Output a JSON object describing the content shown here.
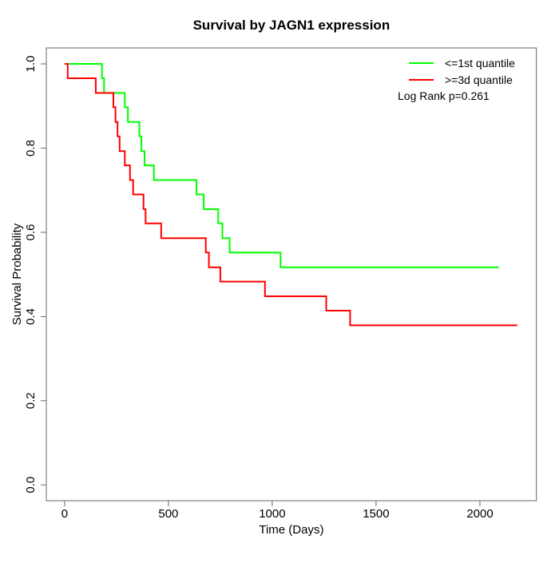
{
  "chart_data": {
    "type": "line",
    "variant": "kaplan_meier_step",
    "title": "Survival by JAGN1 expression",
    "xlabel": "Time (Days)",
    "ylabel": "Survival Probability",
    "grid": false,
    "background": "#ffffff",
    "x_range": [
      -88,
      2272
    ],
    "y_range": [
      -0.0375,
      1.038
    ],
    "x_ticks": {
      "values": [
        0,
        500,
        1000,
        1500,
        2000
      ],
      "labels": [
        "0",
        "500",
        "1000",
        "1500",
        "2000"
      ]
    },
    "y_ticks": {
      "values": [
        0,
        0.2,
        0.4,
        0.6,
        0.8,
        1.0
      ],
      "labels": [
        "0.0",
        "0.2",
        "0.4",
        "0.6",
        "0.8",
        "1.0"
      ]
    },
    "legend": {
      "position": "top-right",
      "entries": [
        {
          "label": "<=1st quantile",
          "color": "#00ff00"
        },
        {
          "label": ">=3d quantile",
          "color": "#ff0000"
        }
      ]
    },
    "annotation": "Log Rank p=0.261",
    "series": [
      {
        "name": "<=1st quantile",
        "color": "#00ff00",
        "times": [
          0,
          180,
          190,
          290,
          305,
          360,
          370,
          385,
          430,
          635,
          670,
          740,
          760,
          795,
          1040
        ],
        "surv": [
          1.0,
          0.966,
          0.931,
          0.897,
          0.862,
          0.828,
          0.793,
          0.759,
          0.724,
          0.69,
          0.655,
          0.621,
          0.586,
          0.552,
          0.517
        ],
        "end_time": 2090
      },
      {
        "name": ">=3d quantile",
        "color": "#ff0000",
        "times": [
          0,
          15,
          150,
          235,
          245,
          255,
          265,
          290,
          315,
          330,
          380,
          390,
          465,
          680,
          695,
          750,
          965,
          1260,
          1375
        ],
        "surv": [
          1.0,
          0.966,
          0.931,
          0.897,
          0.862,
          0.828,
          0.793,
          0.759,
          0.724,
          0.69,
          0.655,
          0.621,
          0.586,
          0.552,
          0.517,
          0.483,
          0.448,
          0.414,
          0.379
        ],
        "end_time": 2180
      }
    ]
  }
}
